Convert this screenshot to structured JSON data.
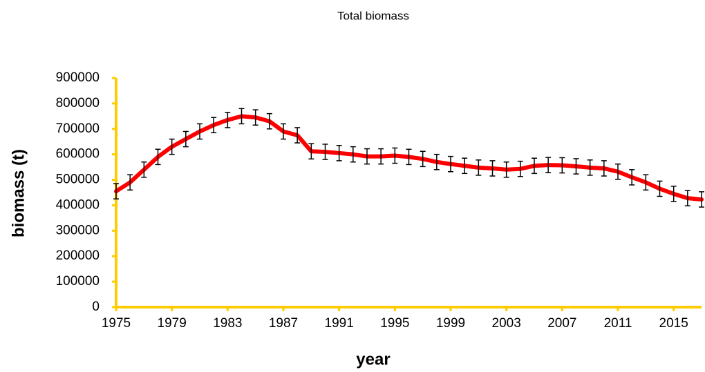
{
  "chart_data": {
    "type": "line",
    "title": "Total biomass",
    "x_label": "year",
    "y_label": "biomass (t)",
    "x": [
      1975,
      1976,
      1977,
      1978,
      1979,
      1980,
      1981,
      1982,
      1983,
      1984,
      1985,
      1986,
      1987,
      1988,
      1989,
      1990,
      1991,
      1992,
      1993,
      1994,
      1995,
      1996,
      1997,
      1998,
      1999,
      2000,
      2001,
      2002,
      2003,
      2004,
      2005,
      2006,
      2007,
      2008,
      2009,
      2010,
      2011,
      2012,
      2013,
      2014,
      2015,
      2016,
      2017
    ],
    "series": [
      {
        "name": "biomass",
        "color": "#ff0000",
        "values": [
          455000,
          490000,
          540000,
          590000,
          630000,
          660000,
          690000,
          715000,
          735000,
          750000,
          745000,
          730000,
          690000,
          675000,
          612000,
          610000,
          605000,
          600000,
          592000,
          592000,
          595000,
          590000,
          582000,
          570000,
          562000,
          555000,
          548000,
          545000,
          540000,
          543000,
          555000,
          558000,
          557000,
          553000,
          548000,
          545000,
          532000,
          510000,
          490000,
          465000,
          445000,
          428000,
          423000
        ],
        "errors": [
          30000,
          30000,
          30000,
          30000,
          30000,
          30000,
          30000,
          30000,
          30000,
          30000,
          30000,
          30000,
          30000,
          30000,
          30000,
          30000,
          30000,
          30000,
          30000,
          30000,
          30000,
          30000,
          30000,
          30000,
          30000,
          30000,
          30000,
          30000,
          30000,
          30000,
          30000,
          30000,
          30000,
          30000,
          30000,
          30000,
          30000,
          30000,
          30000,
          30000,
          30000,
          30000,
          30000
        ]
      }
    ],
    "xlim": [
      1975,
      2017
    ],
    "xticks": [
      1975,
      1979,
      1983,
      1987,
      1991,
      1995,
      1999,
      2003,
      2007,
      2011,
      2015
    ],
    "ylim": [
      0,
      900000
    ],
    "yticks": [
      0,
      100000,
      200000,
      300000,
      400000,
      500000,
      600000,
      700000,
      800000,
      900000
    ],
    "axis_color": "#ffcc00",
    "grid": false
  }
}
